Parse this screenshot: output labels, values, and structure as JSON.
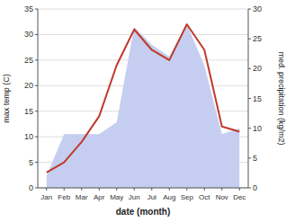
{
  "chart_data": {
    "type": "line",
    "categories": [
      "Jan",
      "Feb",
      "Mar",
      "Apr",
      "May",
      "Jun",
      "Jul",
      "Aug",
      "Sep",
      "Oct",
      "Nov",
      "Dec"
    ],
    "series": [
      {
        "type": "area",
        "axis": "y2",
        "color": "#c5cef0",
        "values": [
          2.0,
          9.0,
          9.0,
          9.0,
          11.0,
          27.0,
          24.0,
          22.0,
          27.5,
          20.5,
          9.0,
          10.0
        ]
      },
      {
        "type": "line",
        "color": "#c0392b",
        "values": [
          3.0,
          5.0,
          9.0,
          14.0,
          24.0,
          31.0,
          27.0,
          25.0,
          32.0,
          27.0,
          12.0,
          11.0
        ]
      }
    ],
    "xlabel": "date (month)",
    "ylabel": "max temp (C)",
    "y2label": "med. precipitation (kg/m2)",
    "ylim": [
      0,
      35
    ],
    "yticks": [
      0,
      5,
      10,
      15,
      20,
      25,
      30,
      35
    ],
    "y2lim": [
      0,
      30
    ],
    "y2ticks": [
      0,
      5,
      10,
      15,
      20,
      25,
      30
    ],
    "grid": true
  }
}
